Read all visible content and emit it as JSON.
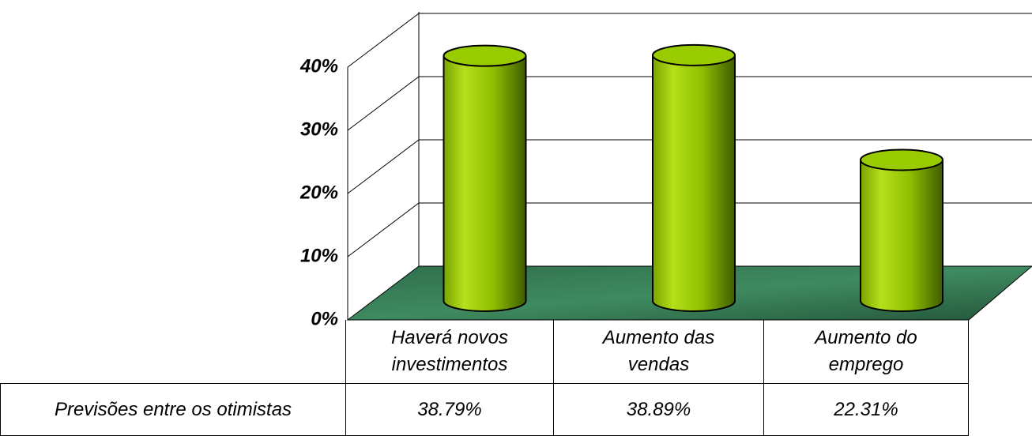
{
  "chart_data": {
    "type": "bar3d",
    "categories": [
      "Haverá novos investimentos",
      "Aumento das vendas",
      "Aumento do emprego"
    ],
    "series": [
      {
        "name": "Previsões entre os otimistas",
        "color": "#99cc00",
        "values": [
          38.79,
          38.89,
          22.31
        ],
        "value_labels": [
          "38.79%",
          "38.89%",
          "22.31%"
        ]
      }
    ],
    "ylim": [
      0,
      40
    ],
    "yticks": [
      {
        "value": 0,
        "label": "0%"
      },
      {
        "value": 10,
        "label": "10%"
      },
      {
        "value": 20,
        "label": "20%"
      },
      {
        "value": 30,
        "label": "30%"
      },
      {
        "value": 40,
        "label": "40%"
      }
    ],
    "grid": true
  }
}
